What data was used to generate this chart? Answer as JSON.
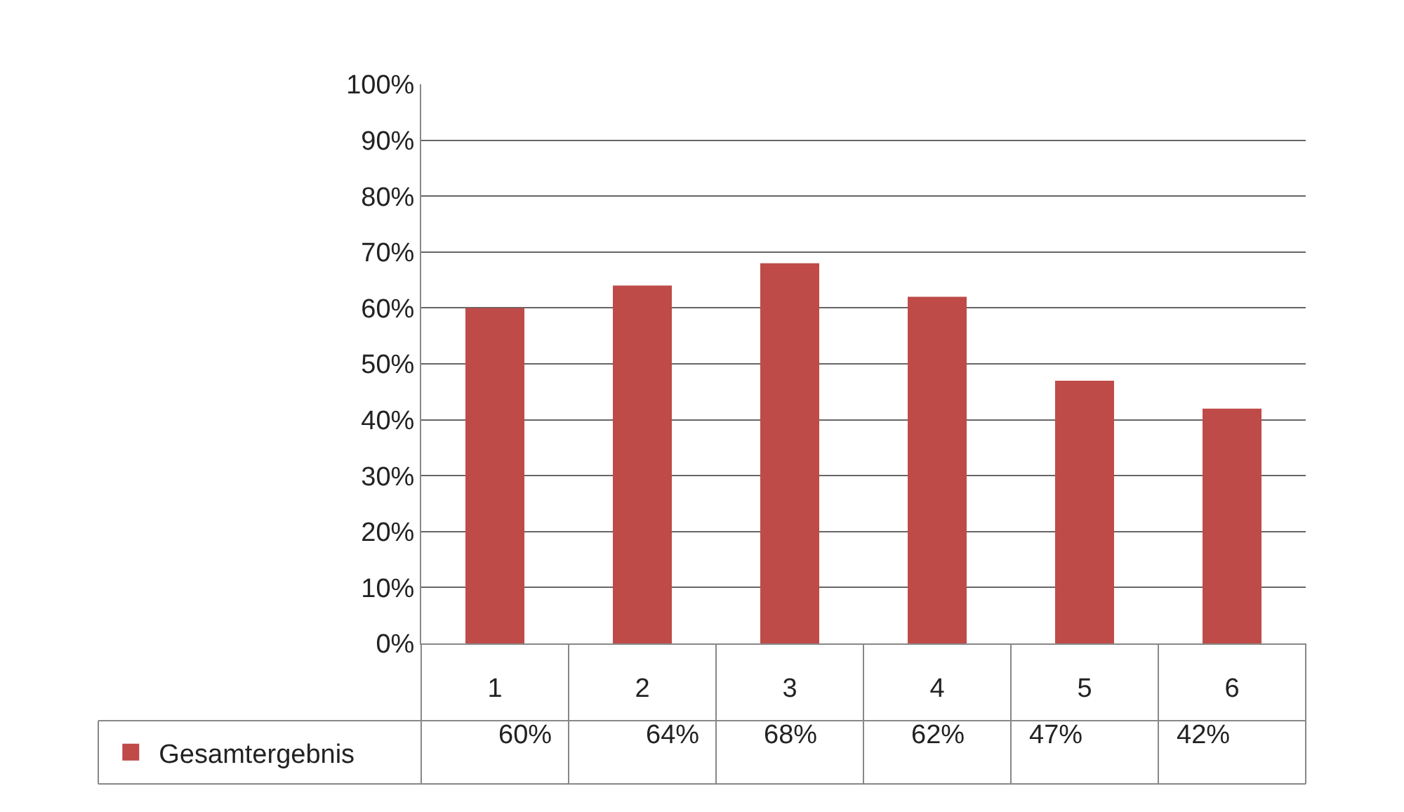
{
  "chart_data": {
    "type": "bar",
    "categories": [
      "1",
      "2",
      "3",
      "4",
      "5",
      "6"
    ],
    "series": [
      {
        "name": "Gesamtergebnis",
        "color": "#be4b48",
        "values": [
          60,
          64,
          68,
          62,
          47,
          42
        ],
        "value_labels": [
          "60%",
          "64%",
          "68%",
          "62%",
          "47%",
          "42%"
        ]
      }
    ],
    "ylim": [
      0,
      100
    ],
    "yticks": [
      {
        "value": 0,
        "label": "0%"
      },
      {
        "value": 10,
        "label": "10%"
      },
      {
        "value": 20,
        "label": "20%"
      },
      {
        "value": 30,
        "label": "30%"
      },
      {
        "value": 40,
        "label": "40%"
      },
      {
        "value": 50,
        "label": "50%"
      },
      {
        "value": 60,
        "label": "60%"
      },
      {
        "value": 70,
        "label": "70%"
      },
      {
        "value": 80,
        "label": "80%"
      },
      {
        "value": 90,
        "label": "90%"
      },
      {
        "value": 100,
        "label": "100%"
      }
    ],
    "grid": "y",
    "legend": "bottom left"
  }
}
